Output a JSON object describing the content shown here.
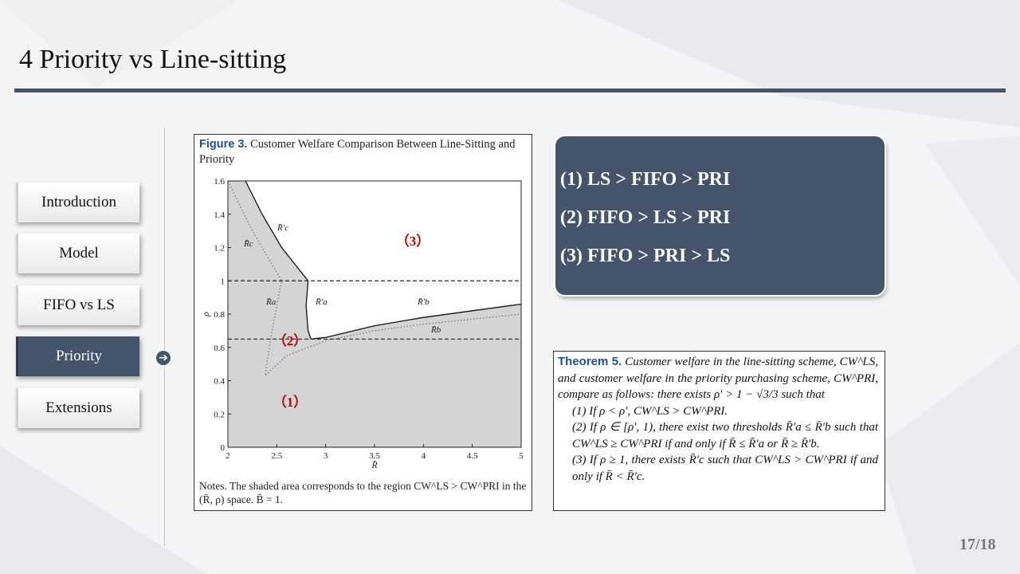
{
  "slide": {
    "title": "4 Priority vs Line-sitting",
    "page": "17/18"
  },
  "nav": {
    "items": [
      {
        "label": "Introduction",
        "active": false
      },
      {
        "label": "Model",
        "active": false
      },
      {
        "label": "FIFO vs LS",
        "active": false
      },
      {
        "label": "Priority",
        "active": true
      },
      {
        "label": "Extensions",
        "active": false
      }
    ],
    "active_icon": "arrow-right-circle-icon"
  },
  "figure": {
    "caption_label": "Figure 3.",
    "caption_text": "Customer Welfare Comparison Between Line-Sitting and Priority",
    "notes": "Notes. The shaded area corresponds to the region CW^LS > CW^PRI in the (R̄, ρ) space. B̄ = 1.",
    "region_labels": [
      "（3）",
      "（2）",
      "（1）"
    ],
    "curve_labels": [
      "R̄′c",
      "R̄c",
      "R̄a",
      "R̄′a",
      "R̄′b",
      "R̄b"
    ]
  },
  "chart_data": {
    "type": "area",
    "title": "Customer Welfare Comparison Between Line-Sitting and Priority",
    "xlabel": "R̄",
    "ylabel": "ρ",
    "xlim": [
      2,
      5
    ],
    "ylim": [
      0,
      1.6
    ],
    "xticks": [
      "2",
      "2.5",
      "3",
      "3.5",
      "4",
      "4.5",
      "5"
    ],
    "yticks": [
      "0",
      "0.2",
      "0.4",
      "0.6",
      "0.8",
      "1",
      "1.2",
      "1.4",
      "1.6"
    ],
    "dashed_lines_y": [
      1.0,
      0.65
    ],
    "shaded_boundary": [
      {
        "x": 2.18,
        "y": 1.6
      },
      {
        "x": 2.35,
        "y": 1.4
      },
      {
        "x": 2.55,
        "y": 1.2
      },
      {
        "x": 2.82,
        "y": 1.0
      },
      {
        "x": 2.8,
        "y": 0.85
      },
      {
        "x": 2.82,
        "y": 0.7
      },
      {
        "x": 2.85,
        "y": 0.65
      },
      {
        "x": 3.0,
        "y": 0.66
      },
      {
        "x": 3.5,
        "y": 0.73
      },
      {
        "x": 4.0,
        "y": 0.78
      },
      {
        "x": 4.5,
        "y": 0.82
      },
      {
        "x": 5.0,
        "y": 0.86
      }
    ],
    "dotted_curve": [
      {
        "x": 2.0,
        "y": 1.6
      },
      {
        "x": 2.25,
        "y": 1.3
      },
      {
        "x": 2.55,
        "y": 1.0
      },
      {
        "x": 2.45,
        "y": 0.7
      },
      {
        "x": 2.38,
        "y": 0.43
      },
      {
        "x": 2.6,
        "y": 0.55
      },
      {
        "x": 3.0,
        "y": 0.64
      },
      {
        "x": 3.5,
        "y": 0.7
      },
      {
        "x": 4.0,
        "y": 0.74
      },
      {
        "x": 4.5,
        "y": 0.77
      },
      {
        "x": 5.0,
        "y": 0.8
      }
    ]
  },
  "panel": {
    "lines": [
      "(1) LS > FIFO > PRI",
      "(2) FIFO > LS > PRI",
      "(3) FIFO > PRI > LS"
    ]
  },
  "theorem": {
    "heading": "Theorem 5.",
    "intro": "Customer welfare in the line-sitting scheme, CW^LS, and customer welfare in the priority purchasing scheme, CW^PRI, compare as follows: there exists ρ′ > 1 − √3/3 such that",
    "items": [
      "(1) If ρ < ρ′, CW^LS > CW^PRI.",
      "(2) If ρ ∈ [ρ′, 1), there exist two thresholds R̄′a ≤ R̄′b such that CW^LS ≥ CW^PRI if and only if R̄ ≤ R̄′a or R̄ ≥ R̄′b.",
      "(3) If ρ ≥ 1, there exists R̄′c such that CW^LS > CW^PRI if and only if R̄ < R̄′c."
    ]
  },
  "colors": {
    "accent": "#44546a",
    "shade": "#d4d4d4",
    "region_label": "#c00000",
    "theorem_heading": "#1f4e9c"
  }
}
